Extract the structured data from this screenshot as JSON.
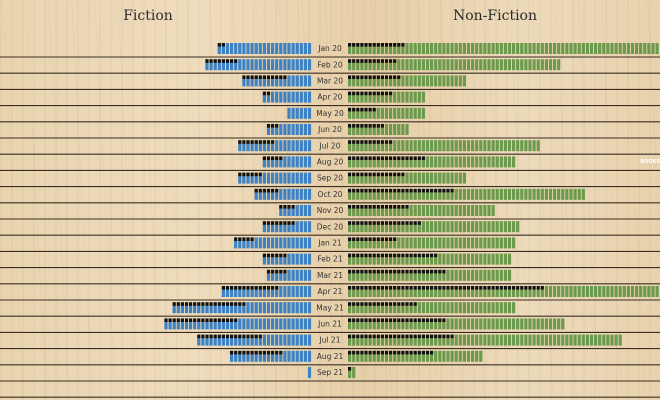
{
  "panels": {
    "left_title": "Fiction",
    "right_title": "Non-Fiction"
  },
  "watermark": "BOOKS",
  "colors": {
    "fiction": "#3d82c4",
    "nonfiction": "#6c9a4c",
    "highlight": "#111111",
    "rule": "#3a2f22"
  },
  "chart_data": {
    "type": "bar",
    "layout": "diverging horizontal unit bars",
    "categories": [
      "Jan 20",
      "Feb 20",
      "Mar 20",
      "Apr 20",
      "May 20",
      "Jun 20",
      "Jul 20",
      "Aug 20",
      "Sep 20",
      "Oct 20",
      "Nov 20",
      "Dec 20",
      "Jan 21",
      "Feb 21",
      "Mar 21",
      "Apr 21",
      "May 21",
      "Jun 21",
      "Jul 21",
      "Aug 21",
      "Sep 21"
    ],
    "series": [
      {
        "name": "Fiction",
        "values": [
          23,
          26,
          17,
          12,
          6,
          11,
          18,
          12,
          18,
          14,
          8,
          12,
          19,
          12,
          11,
          22,
          34,
          36,
          28,
          20,
          1
        ],
        "highlighted": [
          2,
          8,
          11,
          2,
          0,
          3,
          9,
          5,
          6,
          6,
          4,
          8,
          5,
          6,
          5,
          14,
          18,
          18,
          16,
          13,
          0
        ]
      },
      {
        "name": "Non-Fiction",
        "values": [
          76,
          52,
          29,
          19,
          19,
          15,
          47,
          41,
          29,
          58,
          36,
          42,
          41,
          40,
          40,
          78,
          41,
          53,
          67,
          33,
          2
        ],
        "highlighted": [
          14,
          12,
          13,
          11,
          7,
          9,
          11,
          19,
          14,
          26,
          15,
          18,
          12,
          22,
          24,
          48,
          17,
          24,
          26,
          21,
          1
        ]
      }
    ]
  }
}
